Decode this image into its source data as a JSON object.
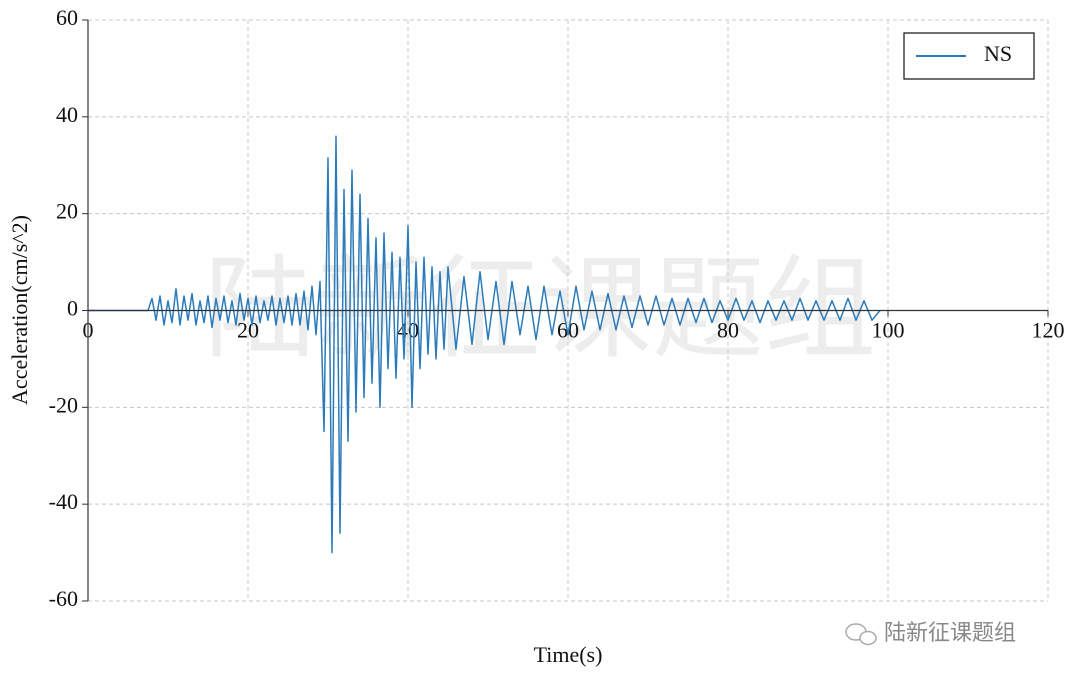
{
  "chart_data": {
    "type": "line",
    "xlabel": "Time(s)",
    "ylabel": "Acceleration(cm/s^2)",
    "watermark": "陆新征课题组",
    "x": [
      0,
      7.5,
      8,
      8.5,
      9,
      9.5,
      10,
      10.5,
      11,
      11.5,
      12,
      12.5,
      13,
      13.5,
      14,
      14.5,
      15,
      15.5,
      16,
      16.5,
      17,
      17.5,
      18,
      18.5,
      19,
      19.5,
      20,
      20.5,
      21,
      21.5,
      22,
      22.5,
      23,
      23.5,
      24,
      24.5,
      25,
      25.5,
      26,
      26.5,
      27,
      27.5,
      28,
      28.5,
      29,
      29.5,
      30,
      30.5,
      31,
      31.5,
      32,
      32.5,
      33,
      33.5,
      34,
      34.5,
      35,
      35.5,
      36,
      36.5,
      37,
      37.5,
      38,
      38.5,
      39,
      39.5,
      40,
      40.5,
      41,
      41.5,
      42,
      42.5,
      43,
      43.5,
      44,
      44.5,
      45,
      46,
      47,
      48,
      49,
      50,
      51,
      52,
      53,
      54,
      55,
      56,
      57,
      58,
      59,
      60,
      61,
      62,
      63,
      64,
      65,
      66,
      67,
      68,
      69,
      70,
      71,
      72,
      73,
      74,
      75,
      76,
      77,
      78,
      79,
      80,
      81,
      82,
      83,
      84,
      85,
      86,
      87,
      88,
      89,
      90,
      91,
      92,
      93,
      94,
      95,
      96,
      97,
      98,
      99
    ],
    "series": [
      {
        "name": "NS",
        "color": "#2b7bba",
        "values": [
          0,
          0,
          2.5,
          -2,
          3,
          -3,
          2,
          -2.5,
          4.5,
          -3,
          3,
          -2,
          3.5,
          -3,
          2,
          -2.5,
          3,
          -3.5,
          2.5,
          -2,
          3,
          -2.5,
          2,
          -3,
          3.5,
          -2,
          2.5,
          -3,
          3,
          -2.5,
          2,
          -2,
          3,
          -3,
          2.5,
          -2.5,
          3,
          -3,
          3.5,
          -3,
          4,
          -4,
          5,
          -5,
          6,
          -25,
          31.5,
          -50,
          36,
          -46,
          25,
          -27,
          29,
          -21,
          24,
          -18,
          19,
          -15,
          15,
          -20,
          16,
          -12,
          12,
          -14,
          11,
          -10,
          17.5,
          -20,
          10,
          -12,
          11,
          -9,
          9,
          -10,
          8,
          -8,
          9,
          -8,
          7,
          -7,
          8,
          -6,
          6,
          -7,
          6,
          -5,
          5,
          -6,
          5,
          -5,
          4,
          -5,
          5,
          -4,
          4,
          -4,
          3.5,
          -4,
          3,
          -3.5,
          3,
          -3,
          3,
          -3,
          2.5,
          -3,
          2.5,
          -2.5,
          2.5,
          -2.5,
          2,
          -2,
          2.5,
          -2,
          2,
          -2.5,
          2,
          -2,
          2,
          -2,
          2.5,
          -2,
          2,
          -2,
          2,
          -2,
          2.5,
          -2,
          2,
          -2,
          0
        ]
      }
    ],
    "xlim": [
      0,
      120
    ],
    "xticks": [
      0,
      20,
      40,
      60,
      80,
      100,
      120
    ],
    "ylim": [
      -60,
      60
    ],
    "yticks": [
      -60,
      -40,
      -20,
      0,
      20,
      40,
      60
    ],
    "grid": true,
    "legend": "upper right"
  }
}
